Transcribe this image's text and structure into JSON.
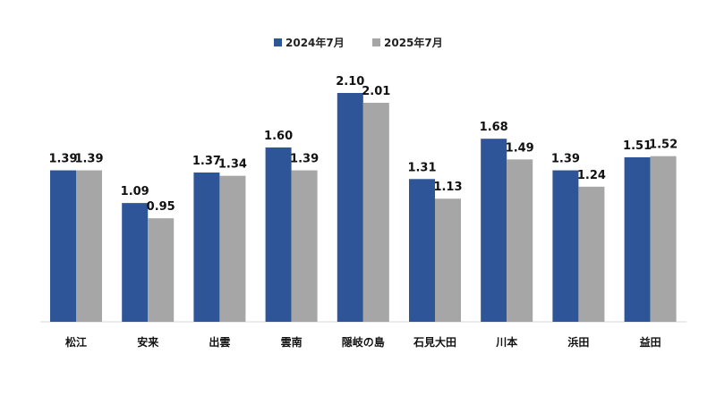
{
  "chart_data": {
    "type": "bar",
    "categories": [
      "松江",
      "安来",
      "出雲",
      "雲南",
      "隠岐の島",
      "石見大田",
      "川本",
      "浜田",
      "益田"
    ],
    "series": [
      {
        "name": "2024年7月",
        "values": [
          1.39,
          1.09,
          1.37,
          1.6,
          2.1,
          1.31,
          1.68,
          1.39,
          1.51
        ],
        "color": "#2E5597"
      },
      {
        "name": "2025年7月",
        "values": [
          1.39,
          0.95,
          1.34,
          1.39,
          2.01,
          1.13,
          1.49,
          1.24,
          1.52
        ],
        "color": "#A6A6A6"
      }
    ],
    "value_labels": [
      [
        "1.39",
        "1.09",
        "1.37",
        "1.60",
        "2.10",
        "1.31",
        "1.68",
        "1.39",
        "1.51"
      ],
      [
        "1.39",
        "0.95",
        "1.34",
        "1.39",
        "2.01",
        "1.13",
        "1.49",
        "1.24",
        "1.52"
      ]
    ],
    "ylim": [
      0,
      2.1
    ],
    "legend_position": "top-center",
    "grid": false
  }
}
